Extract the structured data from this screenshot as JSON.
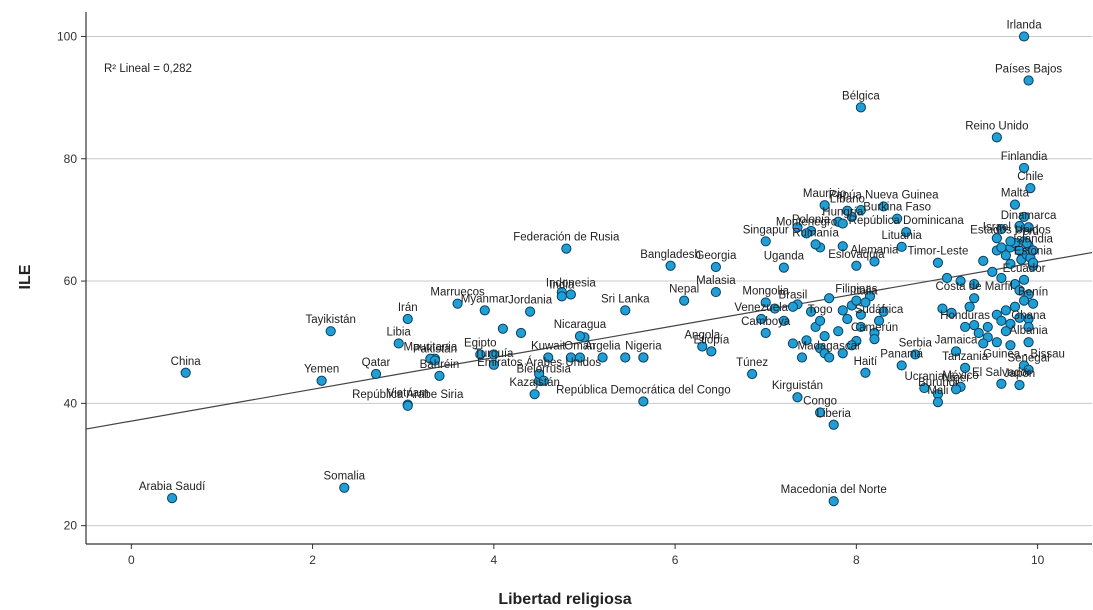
{
  "chart_data": {
    "type": "scatter",
    "xlabel": "Libertad religiosa",
    "ylabel": "ILE",
    "xlim": [
      -0.5,
      10.6
    ],
    "ylim": [
      17,
      104
    ],
    "xticks": [
      0,
      2,
      4,
      6,
      8,
      10
    ],
    "yticks": [
      20,
      40,
      60,
      80,
      100
    ],
    "grid": "horizontal",
    "annotation": "R² Lineal = 0,282",
    "fit_line": {
      "intercept": 37.1,
      "slope": 2.6
    },
    "colors": {
      "point_fill": "#1f9fd4",
      "point_stroke": "#0b3f63",
      "grid": "#c8c8c8",
      "line": "#444444"
    },
    "points": [
      {
        "label": "Irlanda",
        "x": 9.85,
        "y": 100
      },
      {
        "label": "Países Bajos",
        "x": 9.9,
        "y": 92.8
      },
      {
        "label": "Bélgica",
        "x": 8.05,
        "y": 88.4
      },
      {
        "label": "Reino Unido",
        "x": 9.55,
        "y": 83.5
      },
      {
        "label": "Finlandia",
        "x": 9.85,
        "y": 78.5
      },
      {
        "label": "Chile",
        "x": 9.92,
        "y": 75.2
      },
      {
        "label": "Papúa Nueva Guinea",
        "x": 8.3,
        "y": 72.2
      },
      {
        "label": "Malta",
        "x": 9.75,
        "y": 72.5
      },
      {
        "label": "Mauricio",
        "x": 7.65,
        "y": 72.4
      },
      {
        "label": "Burkina Faso",
        "x": 8.45,
        "y": 70.2
      },
      {
        "label": "Polonia",
        "x": 7.5,
        "y": 68.2
      },
      {
        "label": "República Dominicana",
        "x": 8.55,
        "y": 68
      },
      {
        "label": "Dinamarca",
        "x": 9.9,
        "y": 68.8
      },
      {
        "label": "Líbano",
        "x": 7.9,
        "y": 71.5
      },
      {
        "label": "Hungría",
        "x": 7.85,
        "y": 69.4
      },
      {
        "label": "Lituania",
        "x": 8.5,
        "y": 65.6
      },
      {
        "label": "Israel",
        "x": 9.55,
        "y": 67
      },
      {
        "label": "Estados Unidos",
        "x": 9.7,
        "y": 66.5
      },
      {
        "label": "Perú",
        "x": 9.88,
        "y": 66.2
      },
      {
        "label": "Islandia",
        "x": 9.95,
        "y": 65
      },
      {
        "label": "Estonia",
        "x": 9.95,
        "y": 63
      },
      {
        "label": "Singapur",
        "x": 7.0,
        "y": 66.5
      },
      {
        "label": "Montenegro",
        "x": 7.45,
        "y": 67.8
      },
      {
        "label": "Georgia",
        "x": 6.45,
        "y": 62.3
      },
      {
        "label": "Federación de Rusia",
        "x": 4.8,
        "y": 65.3
      },
      {
        "label": "Bangladesh",
        "x": 5.95,
        "y": 62.5
      },
      {
        "label": "Uganda",
        "x": 7.2,
        "y": 62.2
      },
      {
        "label": "Rumanía",
        "x": 7.55,
        "y": 66
      },
      {
        "label": "Alemania",
        "x": 8.2,
        "y": 63.2
      },
      {
        "label": "Eslovaquia",
        "x": 8.0,
        "y": 62.5
      },
      {
        "label": "Malasia",
        "x": 6.45,
        "y": 58.2
      },
      {
        "label": "Mongolia",
        "x": 7.0,
        "y": 56.5
      },
      {
        "label": "Nepal",
        "x": 6.1,
        "y": 56.8
      },
      {
        "label": "Indonesia",
        "x": 4.85,
        "y": 57.8
      },
      {
        "label": "Timor-Leste",
        "x": 8.9,
        "y": 63
      },
      {
        "label": "India",
        "x": 4.75,
        "y": 57.5
      },
      {
        "label": "Filipinas",
        "x": 8.0,
        "y": 56.8
      },
      {
        "label": "Marruecos",
        "x": 3.6,
        "y": 56.3
      },
      {
        "label": "Irán",
        "x": 3.05,
        "y": 53.8
      },
      {
        "label": "Brasil",
        "x": 7.3,
        "y": 55.8
      },
      {
        "label": "Italia",
        "x": 8.1,
        "y": 56.5
      },
      {
        "label": "Costa de Marfil",
        "x": 9.3,
        "y": 57.2
      },
      {
        "label": "Ecuador",
        "x": 9.85,
        "y": 60.2
      },
      {
        "label": "Benín",
        "x": 9.95,
        "y": 56.3
      },
      {
        "label": "Jordania",
        "x": 4.4,
        "y": 55
      },
      {
        "label": "Myanmar",
        "x": 3.9,
        "y": 55.2
      },
      {
        "label": "Tayikistán",
        "x": 2.2,
        "y": 51.8
      },
      {
        "label": "Venezuela",
        "x": 6.95,
        "y": 53.8
      },
      {
        "label": "Sri Lanka",
        "x": 5.45,
        "y": 55.2
      },
      {
        "label": "Nicaragua",
        "x": 4.95,
        "y": 51
      },
      {
        "label": "Togo",
        "x": 7.6,
        "y": 53.5
      },
      {
        "label": "Honduras",
        "x": 9.2,
        "y": 52.5
      },
      {
        "label": "Ghana",
        "x": 9.9,
        "y": 52.5
      },
      {
        "label": "Sudáfrica",
        "x": 8.25,
        "y": 53.5
      },
      {
        "label": "Libia",
        "x": 2.95,
        "y": 49.8
      },
      {
        "label": "Mauritania",
        "x": 3.3,
        "y": 47.3
      },
      {
        "label": "Angola",
        "x": 6.3,
        "y": 49.3
      },
      {
        "label": "Camboya",
        "x": 7.0,
        "y": 51.5
      },
      {
        "label": "Albania",
        "x": 9.9,
        "y": 50
      },
      {
        "label": "Kuwait",
        "x": 4.6,
        "y": 47.5
      },
      {
        "label": "Argelia",
        "x": 5.2,
        "y": 47.5
      },
      {
        "label": "Nigeria",
        "x": 5.65,
        "y": 47.5
      },
      {
        "label": "Camerún",
        "x": 8.2,
        "y": 50.5
      },
      {
        "label": "Etiopía",
        "x": 6.4,
        "y": 48.5
      },
      {
        "label": "China",
        "x": 0.6,
        "y": 45
      },
      {
        "label": "Pakistán",
        "x": 3.35,
        "y": 47
      },
      {
        "label": "Egipto",
        "x": 3.85,
        "y": 48
      },
      {
        "label": "Omán",
        "x": 4.95,
        "y": 47.5
      },
      {
        "label": "Serbia",
        "x": 8.65,
        "y": 48
      },
      {
        "label": "Jamaica",
        "x": 9.1,
        "y": 48.5
      },
      {
        "label": "Guinea - Bissau",
        "x": 9.85,
        "y": 46.2
      },
      {
        "label": "Yemen",
        "x": 2.1,
        "y": 43.7
      },
      {
        "label": "Bahréin",
        "x": 3.4,
        "y": 44.5
      },
      {
        "label": "Turquía",
        "x": 4.0,
        "y": 46.3
      },
      {
        "label": "Emiratos Árabes Unidos",
        "x": 4.5,
        "y": 44.8
      },
      {
        "label": "Madagascar",
        "x": 7.7,
        "y": 47.5
      },
      {
        "label": "Tanzania",
        "x": 9.2,
        "y": 45.8
      },
      {
        "label": "Senegal",
        "x": 9.9,
        "y": 45.5
      },
      {
        "label": "Qatar",
        "x": 2.7,
        "y": 44.8
      },
      {
        "label": "Vietnam",
        "x": 3.05,
        "y": 39.8
      },
      {
        "label": "Bielorrusia",
        "x": 4.55,
        "y": 43.7
      },
      {
        "label": "Kazajstán",
        "x": 4.45,
        "y": 41.5
      },
      {
        "label": "Túnez",
        "x": 6.85,
        "y": 44.8
      },
      {
        "label": "Haití",
        "x": 8.1,
        "y": 45
      },
      {
        "label": "Panamá",
        "x": 8.5,
        "y": 46.2
      },
      {
        "label": "México",
        "x": 9.15,
        "y": 42.7
      },
      {
        "label": "Japón",
        "x": 9.8,
        "y": 43
      },
      {
        "label": "República Árabe Siria",
        "x": 3.05,
        "y": 39.6
      },
      {
        "label": "República Democrática del Congo",
        "x": 5.65,
        "y": 40.3
      },
      {
        "label": "Níger",
        "x": 9.1,
        "y": 42.3
      },
      {
        "label": "Burundi",
        "x": 8.9,
        "y": 41.5
      },
      {
        "label": "Congo",
        "x": 7.6,
        "y": 38.5
      },
      {
        "label": "Kirguistán",
        "x": 7.35,
        "y": 41
      },
      {
        "label": "Ucrania",
        "x": 8.75,
        "y": 42.5
      },
      {
        "label": "Mali",
        "x": 8.9,
        "y": 40.2
      },
      {
        "label": "El Salvador",
        "x": 9.6,
        "y": 43.2
      },
      {
        "label": "Liberia",
        "x": 7.75,
        "y": 36.5
      },
      {
        "label": "Arabia Saudí",
        "x": 0.45,
        "y": 24.5
      },
      {
        "label": "Somalia",
        "x": 2.35,
        "y": 26.2
      },
      {
        "label": "Macedonia del Norte",
        "x": 7.75,
        "y": 24
      }
    ],
    "extra_points": [
      {
        "x": 4.75,
        "y": 58.2
      },
      {
        "x": 4.1,
        "y": 52.2
      },
      {
        "x": 4.3,
        "y": 51.5
      },
      {
        "x": 5.0,
        "y": 50.8
      },
      {
        "x": 7.1,
        "y": 55.5
      },
      {
        "x": 7.2,
        "y": 53.5
      },
      {
        "x": 7.35,
        "y": 56.2
      },
      {
        "x": 7.5,
        "y": 55
      },
      {
        "x": 7.55,
        "y": 52.5
      },
      {
        "x": 7.65,
        "y": 51
      },
      {
        "x": 7.7,
        "y": 57.2
      },
      {
        "x": 7.85,
        "y": 55.2
      },
      {
        "x": 7.9,
        "y": 53.8
      },
      {
        "x": 7.95,
        "y": 56
      },
      {
        "x": 8.05,
        "y": 54.5
      },
      {
        "x": 8.15,
        "y": 57.5
      },
      {
        "x": 7.45,
        "y": 50.3
      },
      {
        "x": 7.3,
        "y": 49.8
      },
      {
        "x": 7.8,
        "y": 51.8
      },
      {
        "x": 8.0,
        "y": 50.2
      },
      {
        "x": 7.6,
        "y": 49
      },
      {
        "x": 7.85,
        "y": 48.2
      },
      {
        "x": 7.95,
        "y": 49.5
      },
      {
        "x": 7.4,
        "y": 47.5
      },
      {
        "x": 7.65,
        "y": 48.2
      },
      {
        "x": 7.35,
        "y": 68.8
      },
      {
        "x": 7.8,
        "y": 69.7
      },
      {
        "x": 7.95,
        "y": 70.5
      },
      {
        "x": 8.05,
        "y": 71.6
      },
      {
        "x": 7.6,
        "y": 65.5
      },
      {
        "x": 7.85,
        "y": 65.7
      },
      {
        "x": 9.55,
        "y": 65
      },
      {
        "x": 9.6,
        "y": 65.5
      },
      {
        "x": 9.65,
        "y": 64.2
      },
      {
        "x": 9.7,
        "y": 65.5
      },
      {
        "x": 9.75,
        "y": 66.2
      },
      {
        "x": 9.8,
        "y": 65
      },
      {
        "x": 9.82,
        "y": 63.5
      },
      {
        "x": 9.85,
        "y": 66.5
      },
      {
        "x": 9.88,
        "y": 64.3
      },
      {
        "x": 9.9,
        "y": 65.8
      },
      {
        "x": 9.92,
        "y": 63.8
      },
      {
        "x": 9.95,
        "y": 62.5
      },
      {
        "x": 9.8,
        "y": 69
      },
      {
        "x": 9.85,
        "y": 70.5
      },
      {
        "x": 9.6,
        "y": 68.5
      },
      {
        "x": 9.7,
        "y": 62.8
      },
      {
        "x": 9.4,
        "y": 63.3
      },
      {
        "x": 9.5,
        "y": 61.5
      },
      {
        "x": 9.6,
        "y": 60.5
      },
      {
        "x": 9.75,
        "y": 59.5
      },
      {
        "x": 9.8,
        "y": 58.5
      },
      {
        "x": 9.9,
        "y": 57.8
      },
      {
        "x": 9.85,
        "y": 56.8
      },
      {
        "x": 9.75,
        "y": 55.8
      },
      {
        "x": 9.65,
        "y": 55.2
      },
      {
        "x": 9.55,
        "y": 54.5
      },
      {
        "x": 9.6,
        "y": 53.5
      },
      {
        "x": 9.7,
        "y": 53
      },
      {
        "x": 9.8,
        "y": 54
      },
      {
        "x": 9.9,
        "y": 53.8
      },
      {
        "x": 9.45,
        "y": 52.5
      },
      {
        "x": 9.35,
        "y": 51.5
      },
      {
        "x": 9.45,
        "y": 50.8
      },
      {
        "x": 9.55,
        "y": 50
      },
      {
        "x": 9.65,
        "y": 51.8
      },
      {
        "x": 9.7,
        "y": 49.5
      },
      {
        "x": 9.3,
        "y": 52.8
      },
      {
        "x": 9.4,
        "y": 49.8
      },
      {
        "x": 8.95,
        "y": 55.5
      },
      {
        "x": 9.05,
        "y": 54.8
      },
      {
        "x": 9.25,
        "y": 55.8
      },
      {
        "x": 8.3,
        "y": 55
      },
      {
        "x": 8.2,
        "y": 51.5
      },
      {
        "x": 8.05,
        "y": 52.5
      },
      {
        "x": 5.65,
        "y": 47.5
      },
      {
        "x": 5.45,
        "y": 47.5
      },
      {
        "x": 4.85,
        "y": 47.5
      },
      {
        "x": 3.35,
        "y": 47.3
      },
      {
        "x": 4.0,
        "y": 48
      },
      {
        "x": 4.5,
        "y": 43.7
      },
      {
        "x": 9.0,
        "y": 60.5
      },
      {
        "x": 9.15,
        "y": 60
      },
      {
        "x": 9.3,
        "y": 59.5
      }
    ]
  }
}
